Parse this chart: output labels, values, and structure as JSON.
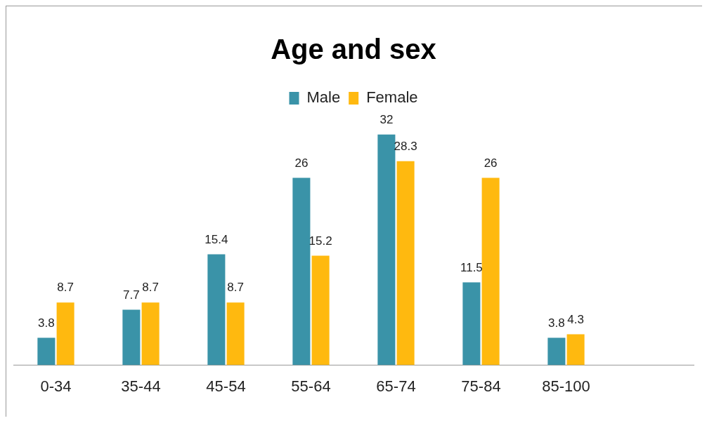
{
  "chart_data": {
    "type": "bar",
    "title": "Age and sex",
    "categories": [
      "0-34",
      "35-44",
      "45-54",
      "55-64",
      "65-74",
      "75-84",
      "85-100",
      null
    ],
    "series": [
      {
        "name": "Male",
        "color": "#3a93a8",
        "values": [
          3.8,
          7.7,
          15.4,
          26,
          32,
          11.5,
          3.8,
          null
        ]
      },
      {
        "name": "Female",
        "color": "#ffb90f",
        "values": [
          8.7,
          8.7,
          8.7,
          15.2,
          28.3,
          26,
          4.3,
          null
        ]
      }
    ],
    "legend": "top",
    "data_labels": true,
    "grid": false
  }
}
